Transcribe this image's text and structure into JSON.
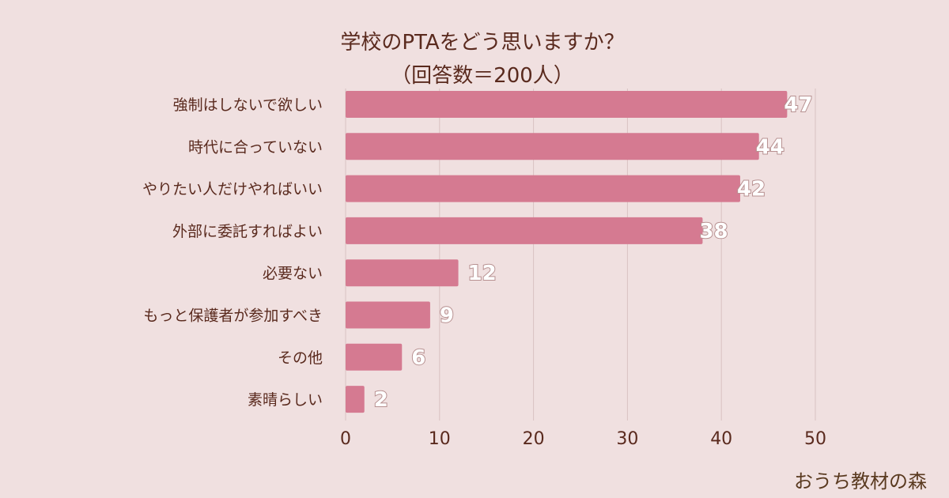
{
  "chart_data": {
    "type": "bar",
    "orientation": "horizontal",
    "title": "学校のPTAをどう思いますか？",
    "subtitle": "（回答数＝200人）",
    "categories": [
      "強制はしないで欲しい",
      "時代に合っていない",
      "やりたい人だけやればいい",
      "外部に委託すればよい",
      "必要ない",
      "もっと保護者が参加すべき",
      "その他",
      "素晴らしい"
    ],
    "values": [
      47,
      44,
      42,
      38,
      12,
      9,
      6,
      2
    ],
    "xlim": [
      0,
      50
    ],
    "xticks": [
      0,
      10,
      20,
      30,
      40,
      50
    ],
    "xlabel": "",
    "ylabel": "",
    "grid": true,
    "bar_color": "#d57a91"
  },
  "branding": {
    "text": "おうち教材の森"
  }
}
